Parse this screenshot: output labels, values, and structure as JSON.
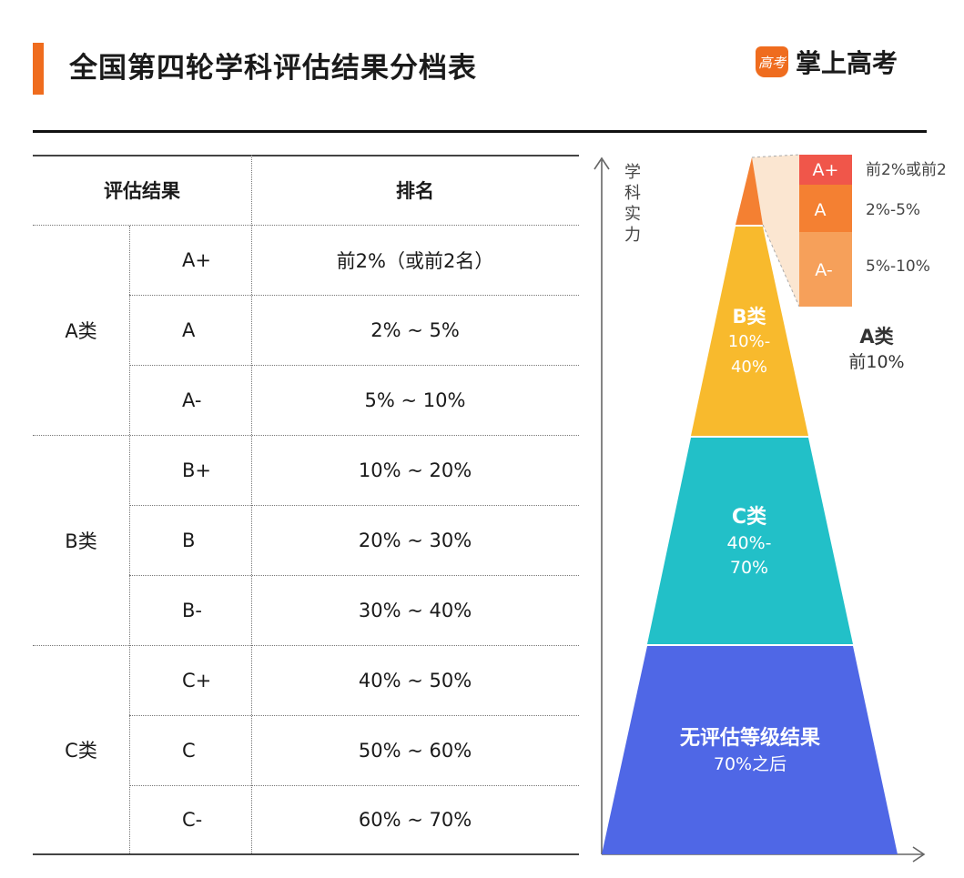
{
  "title": "全国第四轮学科评估结果分档表",
  "brand": {
    "logo_text": "高考",
    "name": "掌上高考"
  },
  "table": {
    "headers": {
      "result": "评估结果",
      "rank": "排名"
    },
    "groups": [
      {
        "label": "A类",
        "rows": [
          {
            "level": "A+",
            "range": "前2%（或前2名）"
          },
          {
            "level": "A",
            "range": "2% ~ 5%"
          },
          {
            "level": "A-",
            "range": "5% ~ 10%"
          }
        ]
      },
      {
        "label": "B类",
        "rows": [
          {
            "level": "B+",
            "range": "10% ~ 20%"
          },
          {
            "level": "B",
            "range": "20% ~ 30%"
          },
          {
            "level": "B-",
            "range": "30% ~ 40%"
          }
        ]
      },
      {
        "label": "C类",
        "rows": [
          {
            "level": "C+",
            "range": "40% ~ 50%"
          },
          {
            "level": "C",
            "range": "50% ~ 60%"
          },
          {
            "level": "C-",
            "range": "60% ~ 70%"
          }
        ]
      }
    ]
  },
  "pyramid": {
    "axis_label": "学科实力",
    "layers": [
      {
        "title": "B类",
        "range_line1": "10%-",
        "range_line2": "40%",
        "color": "#f8ba2d"
      },
      {
        "title": "C类",
        "range_line1": "40%-",
        "range_line2": "70%",
        "color": "#22c0c8"
      },
      {
        "title": "无评估等级结果",
        "range_line1": "70%之后",
        "color": "#4f67e6"
      }
    ],
    "a_levels": [
      {
        "level": "A+",
        "range": "前2%或前2",
        "color": "#f0564a"
      },
      {
        "level": "A",
        "range": "2%-5%",
        "color": "#f48032"
      },
      {
        "level": "A-",
        "range": "5%-10%",
        "color": "#f6a05a"
      }
    ],
    "a_group": {
      "title": "A类",
      "subtitle": "前10%"
    },
    "colors": {
      "apex": "#f48032",
      "callout": "#fbe3cc"
    }
  }
}
